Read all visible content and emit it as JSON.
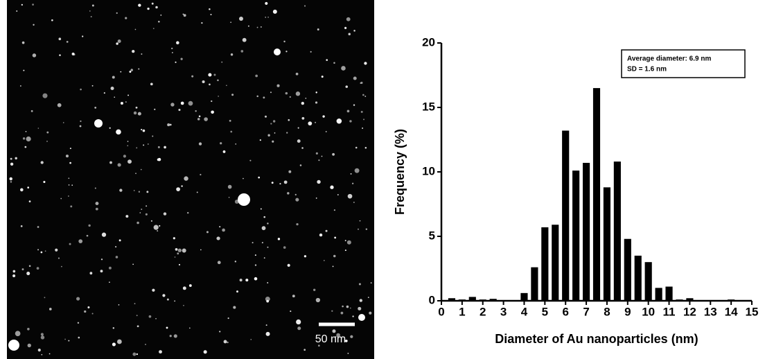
{
  "image": {
    "scale_bar": "50 nm"
  },
  "chart_data": {
    "type": "bar",
    "x": [
      0.5,
      1,
      1.5,
      2,
      2.5,
      3,
      3.5,
      4,
      4.5,
      5,
      5.5,
      6,
      6.5,
      7,
      7.5,
      8,
      8.5,
      9,
      9.5,
      10,
      10.5,
      11,
      11.5,
      12,
      12.5,
      13,
      13.5,
      14,
      14.5
    ],
    "values": [
      0.2,
      0.1,
      0.3,
      0.1,
      0.15,
      0,
      0,
      0.6,
      2.6,
      5.7,
      5.9,
      13.2,
      10.1,
      10.7,
      16.5,
      8.8,
      10.8,
      4.8,
      3.5,
      3.0,
      1.0,
      1.1,
      0.1,
      0.2,
      0,
      0,
      0,
      0.1,
      0
    ],
    "color": "#000000",
    "xlabel": "Diameter of Au nanoparticles (nm)",
    "ylabel": "Frequency (%)",
    "xlim": [
      0,
      15
    ],
    "xticks": [
      0,
      1,
      2,
      3,
      4,
      5,
      6,
      7,
      8,
      9,
      10,
      11,
      12,
      13,
      14,
      15
    ],
    "ylim": [
      0,
      20
    ],
    "yticks": [
      0,
      5,
      10,
      15,
      20
    ],
    "annotations": [
      "Average diameter: 6.9 nm",
      "SD = 1.6 nm"
    ]
  }
}
